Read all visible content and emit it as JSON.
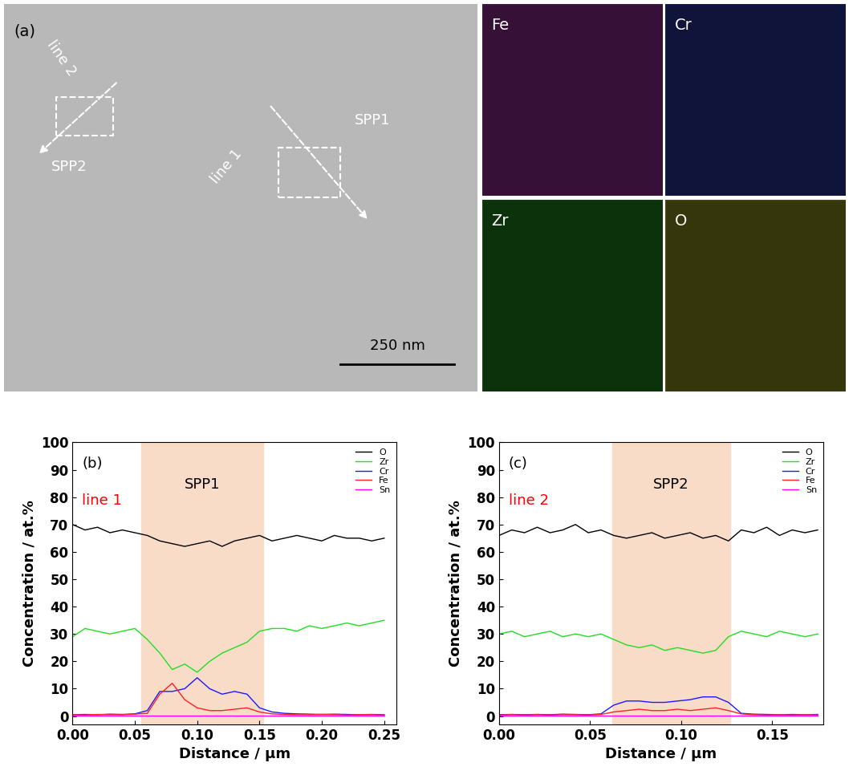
{
  "image_panel": {
    "label": "(a)",
    "annotations": [
      "line 2",
      "SPP2",
      "line 1",
      "SPP1"
    ],
    "scale_bar": "250 nm"
  },
  "maps": [
    {
      "label": "Fe",
      "color": "#cc33cc"
    },
    {
      "label": "Cr",
      "color": "#3344dd"
    },
    {
      "label": "Zr",
      "color": "#22bb22"
    },
    {
      "label": "O",
      "color": "#cccc22"
    }
  ],
  "chart_data": [
    {
      "type": "line",
      "panel_label": "(b)",
      "annotation": "line 1",
      "shaded_region": {
        "label": "SPP1",
        "x": [
          0.055,
          0.153
        ],
        "color": "#f8dcc8"
      },
      "x_label": "Distance / µm",
      "y_label": "Concentration / at.%",
      "x": [
        0,
        0.01,
        0.02,
        0.03,
        0.04,
        0.05,
        0.06,
        0.07,
        0.08,
        0.09,
        0.1,
        0.11,
        0.12,
        0.13,
        0.14,
        0.15,
        0.16,
        0.17,
        0.18,
        0.19,
        0.2,
        0.21,
        0.22,
        0.23,
        0.24,
        0.25
      ],
      "series": [
        {
          "name": "O",
          "color": "#000000",
          "values": [
            70,
            68,
            69,
            67,
            68,
            67,
            66,
            64,
            63,
            62,
            63,
            64,
            62,
            64,
            65,
            66,
            64,
            65,
            66,
            65,
            64,
            66,
            65,
            65,
            64,
            65
          ]
        },
        {
          "name": "Zr",
          "color": "#22dd22",
          "values": [
            29,
            32,
            31,
            30,
            31,
            32,
            28,
            23,
            17,
            19,
            16,
            20,
            23,
            25,
            27,
            31,
            32,
            32,
            31,
            33,
            32,
            33,
            34,
            33,
            34,
            35
          ]
        },
        {
          "name": "Cr",
          "color": "#1a1aff",
          "values": [
            0.5,
            0.6,
            0.5,
            0.7,
            0.6,
            0.8,
            2,
            9,
            9,
            10,
            14,
            10,
            8,
            9,
            8,
            3,
            1.5,
            1,
            0.8,
            0.7,
            0.6,
            0.7,
            0.6,
            0.5,
            0.6,
            0.5
          ]
        },
        {
          "name": "Fe",
          "color": "#ff2020",
          "values": [
            0.5,
            0.4,
            0.6,
            0.5,
            0.5,
            0.7,
            1,
            8,
            12,
            6,
            3,
            2,
            2,
            2.5,
            3,
            1.5,
            0.8,
            0.6,
            0.5,
            0.5,
            0.6,
            0.5,
            0.4,
            0.5,
            0.5,
            0.4
          ]
        },
        {
          "name": "Sn",
          "color": "#ff00ff",
          "values": [
            0.3,
            0.3,
            0.3,
            0.3,
            0.3,
            0.3,
            0.3,
            0.3,
            0.3,
            0.3,
            0.3,
            0.3,
            0.3,
            0.3,
            0.3,
            0.3,
            0.3,
            0.3,
            0.3,
            0.3,
            0.3,
            0.3,
            0.3,
            0.3,
            0.3,
            0.3
          ]
        }
      ],
      "xlim": [
        0,
        0.26
      ],
      "xticks": [
        {
          "value": 0,
          "label": "0.00"
        },
        {
          "value": 0.05,
          "label": "0.05"
        },
        {
          "value": 0.1,
          "label": "0.10"
        },
        {
          "value": 0.15,
          "label": "0.15"
        },
        {
          "value": 0.2,
          "label": "0.20"
        },
        {
          "value": 0.25,
          "label": "0.25"
        }
      ],
      "ylim": [
        -3,
        100
      ],
      "yticks": [
        0,
        10,
        20,
        30,
        40,
        50,
        60,
        70,
        80,
        90,
        100
      ],
      "legend": "upper right"
    },
    {
      "type": "line",
      "panel_label": "(c)",
      "annotation": "line 2",
      "shaded_region": {
        "label": "SPP2",
        "x": [
          0.062,
          0.127
        ],
        "color": "#f8dcc8"
      },
      "x_label": "Distance / µm",
      "y_label": "Concentration / at.%",
      "x": [
        0,
        0.007,
        0.014,
        0.021,
        0.028,
        0.035,
        0.042,
        0.049,
        0.056,
        0.063,
        0.07,
        0.077,
        0.084,
        0.091,
        0.098,
        0.105,
        0.112,
        0.119,
        0.126,
        0.133,
        0.14,
        0.147,
        0.154,
        0.161,
        0.168,
        0.175
      ],
      "series": [
        {
          "name": "O",
          "color": "#000000",
          "values": [
            66,
            68,
            67,
            69,
            67,
            68,
            70,
            67,
            68,
            66,
            65,
            66,
            67,
            65,
            66,
            67,
            65,
            66,
            64,
            68,
            67,
            69,
            66,
            68,
            67,
            68
          ]
        },
        {
          "name": "Zr",
          "color": "#22dd22",
          "values": [
            30,
            31,
            29,
            30,
            31,
            29,
            30,
            29,
            30,
            28,
            26,
            25,
            26,
            24,
            25,
            24,
            23,
            24,
            29,
            31,
            30,
            29,
            31,
            30,
            29,
            30
          ]
        },
        {
          "name": "Cr",
          "color": "#1a1aff",
          "values": [
            0.5,
            0.6,
            0.5,
            0.6,
            0.5,
            0.7,
            0.6,
            0.5,
            0.8,
            4,
            5.5,
            5.5,
            5,
            5,
            5.5,
            6,
            7,
            7,
            5,
            1,
            0.7,
            0.6,
            0.5,
            0.6,
            0.5,
            0.6
          ]
        },
        {
          "name": "Fe",
          "color": "#ff2020",
          "values": [
            0.4,
            0.5,
            0.4,
            0.5,
            0.4,
            0.5,
            0.5,
            0.4,
            0.6,
            1.5,
            2,
            2.5,
            2,
            2,
            2.5,
            2,
            2.5,
            3,
            2,
            0.8,
            0.5,
            0.4,
            0.5,
            0.4,
            0.5,
            0.4
          ]
        },
        {
          "name": "Sn",
          "color": "#ff00ff",
          "values": [
            0.3,
            0.3,
            0.3,
            0.3,
            0.3,
            0.3,
            0.3,
            0.3,
            0.3,
            0.3,
            0.3,
            0.3,
            0.3,
            0.3,
            0.3,
            0.3,
            0.3,
            0.3,
            0.3,
            0.3,
            0.3,
            0.3,
            0.3,
            0.3,
            0.3,
            0.3
          ]
        }
      ],
      "xlim": [
        0,
        0.178
      ],
      "xticks": [
        {
          "value": 0,
          "label": "0.00"
        },
        {
          "value": 0.05,
          "label": "0.05"
        },
        {
          "value": 0.1,
          "label": "0.10"
        },
        {
          "value": 0.15,
          "label": "0.15"
        }
      ],
      "ylim": [
        -3,
        100
      ],
      "yticks": [
        0,
        10,
        20,
        30,
        40,
        50,
        60,
        70,
        80,
        90,
        100
      ],
      "legend": "upper right"
    }
  ]
}
